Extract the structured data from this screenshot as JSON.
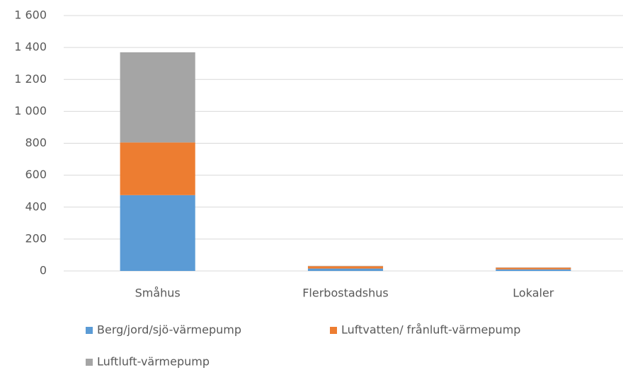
{
  "chart_data": {
    "type": "stacked_bar",
    "categories": [
      "Småhus",
      "Flerbostadshus",
      "Lokaler"
    ],
    "series": [
      {
        "name": "Berg/jord/sjö-värmepump",
        "color": "#5b9bd5",
        "values": [
          475,
          15,
          10
        ]
      },
      {
        "name": "Luftvatten/ frånluft-värmepump",
        "color": "#ed7d31",
        "values": [
          330,
          15,
          10
        ]
      },
      {
        "name": "Luftluft-värmepump",
        "color": "#a5a5a5",
        "values": [
          565,
          2,
          2
        ]
      }
    ],
    "ylim": [
      0,
      1600
    ],
    "yticks": [
      0,
      200,
      400,
      600,
      800,
      {
        "value": 1000,
        "label": "1 000"
      },
      {
        "value": 1200,
        "label": "1 200"
      },
      {
        "value": 1400,
        "label": "1 400"
      },
      {
        "value": 1600,
        "label": "1 600"
      }
    ],
    "grid": true,
    "legend": "bottom"
  }
}
